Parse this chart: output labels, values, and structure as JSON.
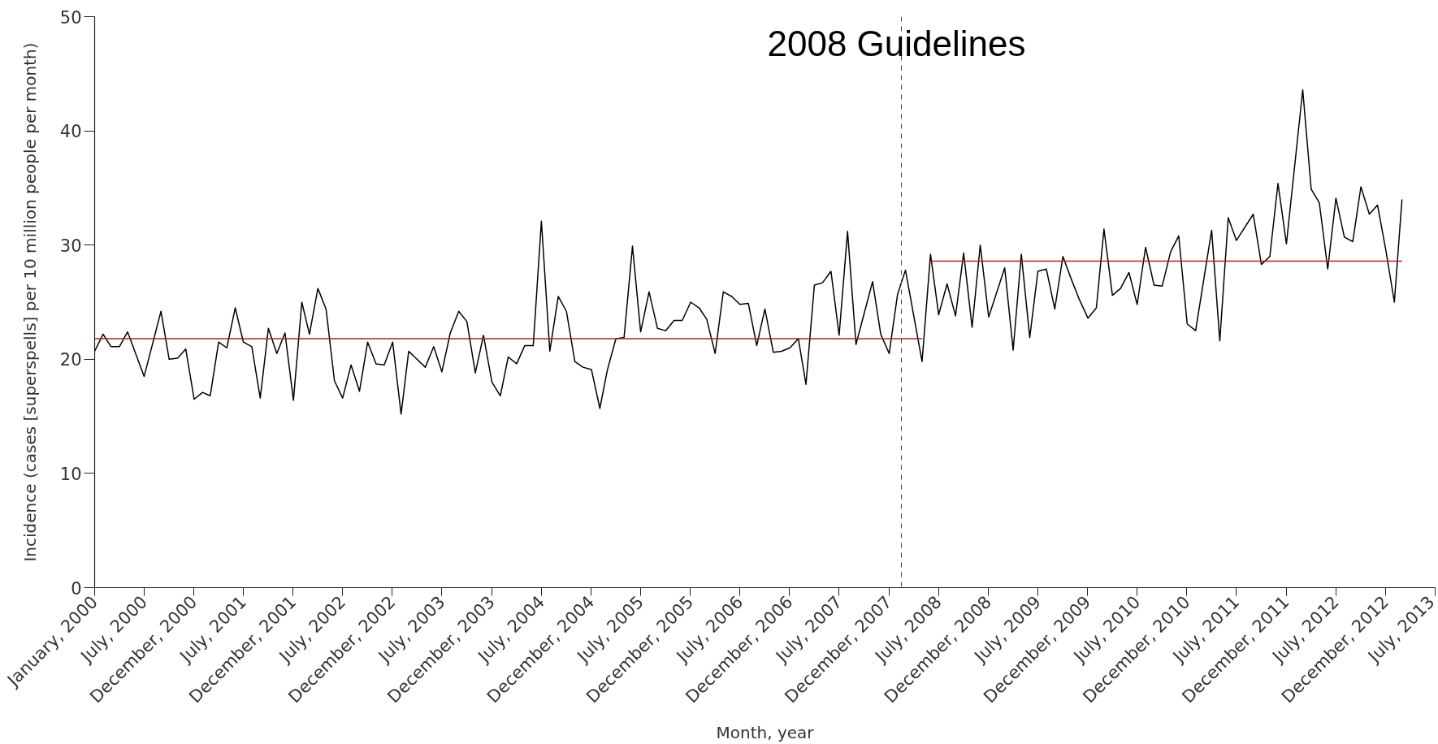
{
  "chart_data": {
    "type": "line",
    "xlabel": "Month, year",
    "ylabel": "Incidence (cases [superspells] per 10 million people per month)",
    "xlim": [
      "2000-01",
      "2013-07"
    ],
    "ylim": [
      0,
      50
    ],
    "yticks": [
      0,
      10,
      20,
      30,
      40,
      50
    ],
    "xticks": [
      {
        "value": "2000-01",
        "label": "January, 2000"
      },
      {
        "value": "2000-07",
        "label": "July, 2000"
      },
      {
        "value": "2000-12-31",
        "label": "December, 2000"
      },
      {
        "value": "2001-07",
        "label": "July, 2001"
      },
      {
        "value": "2001-12-31",
        "label": "December, 2001"
      },
      {
        "value": "2002-07",
        "label": "July, 2002"
      },
      {
        "value": "2002-12-31",
        "label": "December, 2002"
      },
      {
        "value": "2003-07",
        "label": "July, 2003"
      },
      {
        "value": "2003-12-31",
        "label": "December, 2003"
      },
      {
        "value": "2004-07",
        "label": "July, 2004"
      },
      {
        "value": "2004-12-31",
        "label": "December, 2004"
      },
      {
        "value": "2005-07",
        "label": "July, 2005"
      },
      {
        "value": "2005-12-31",
        "label": "December, 2005"
      },
      {
        "value": "2006-07",
        "label": "July, 2006"
      },
      {
        "value": "2006-12-31",
        "label": "December, 2006"
      },
      {
        "value": "2007-07",
        "label": "July, 2007"
      },
      {
        "value": "2007-12-31",
        "label": "December, 2007"
      },
      {
        "value": "2008-07",
        "label": "July, 2008"
      },
      {
        "value": "2008-12-31",
        "label": "December, 2008"
      },
      {
        "value": "2009-07",
        "label": "July, 2009"
      },
      {
        "value": "2009-12-31",
        "label": "December, 2009"
      },
      {
        "value": "2010-07",
        "label": "July, 2010"
      },
      {
        "value": "2010-12-31",
        "label": "December, 2010"
      },
      {
        "value": "2011-07",
        "label": "July, 2011"
      },
      {
        "value": "2011-12-31",
        "label": "December, 2011"
      },
      {
        "value": "2012-07",
        "label": "July, 2012"
      },
      {
        "value": "2012-12-31",
        "label": "December, 2012"
      },
      {
        "value": "2013-07",
        "label": "July, 2013"
      }
    ],
    "grid": false,
    "series": [
      {
        "color": "#000000",
        "x": [
          "2000-01",
          "2000-02",
          "2000-03",
          "2000-04",
          "2000-05",
          "2000-07",
          "2000-09",
          "2000-10",
          "2000-11",
          "2000-12",
          "2001-01",
          "2001-02",
          "2001-03",
          "2001-04",
          "2001-05",
          "2001-06",
          "2001-07",
          "2001-08",
          "2001-09",
          "2001-10",
          "2001-11",
          "2001-12",
          "2002-01",
          "2002-02",
          "2002-03",
          "2002-04",
          "2002-05",
          "2002-06",
          "2002-07",
          "2002-08",
          "2002-09",
          "2002-10",
          "2002-11",
          "2002-12",
          "2003-01",
          "2003-02",
          "2003-03",
          "2003-05",
          "2003-06",
          "2003-07",
          "2003-08",
          "2003-09",
          "2003-10",
          "2003-11",
          "2003-12",
          "2004-01",
          "2004-02",
          "2004-03",
          "2004-04",
          "2004-05",
          "2004-06",
          "2004-07",
          "2004-08",
          "2004-09",
          "2004-10",
          "2004-11",
          "2004-12",
          "2005-01",
          "2005-02",
          "2005-03",
          "2005-04",
          "2005-05",
          "2005-06",
          "2005-07",
          "2005-08",
          "2005-09",
          "2005-10",
          "2005-11",
          "2005-12",
          "2006-01",
          "2006-02",
          "2006-03",
          "2006-04",
          "2006-05",
          "2006-06",
          "2006-07",
          "2006-08",
          "2006-09",
          "2006-10",
          "2006-11",
          "2006-12",
          "2007-01",
          "2007-02",
          "2007-03",
          "2007-04",
          "2007-05",
          "2007-06",
          "2007-07",
          "2007-08",
          "2007-09",
          "2007-11",
          "2007-12",
          "2008-01",
          "2008-02",
          "2008-03",
          "2008-05",
          "2008-06",
          "2008-07",
          "2008-08",
          "2008-09",
          "2008-10",
          "2008-11",
          "2008-12",
          "2009-01",
          "2009-03",
          "2009-04",
          "2009-05",
          "2009-06",
          "2009-07",
          "2009-08",
          "2009-09",
          "2009-10",
          "2009-11",
          "2009-12",
          "2010-01",
          "2010-02",
          "2010-03",
          "2010-04",
          "2010-05",
          "2010-06",
          "2010-07",
          "2010-08",
          "2010-09",
          "2010-10",
          "2010-11",
          "2010-12",
          "2011-01",
          "2011-02",
          "2011-04",
          "2011-05",
          "2011-06",
          "2011-07",
          "2011-09",
          "2011-10",
          "2011-11",
          "2011-12",
          "2012-01",
          "2012-03",
          "2012-04",
          "2012-05",
          "2012-06",
          "2012-07",
          "2012-08",
          "2012-09",
          "2012-10",
          "2012-11",
          "2012-12",
          "2013-01",
          "2013-02",
          "2013-03"
        ],
        "values": [
          20.7,
          22.2,
          21.1,
          21.1,
          22.4,
          18.5,
          24.2,
          20.0,
          20.1,
          20.9,
          16.5,
          17.1,
          16.8,
          21.5,
          21.0,
          24.5,
          21.5,
          21.1,
          16.6,
          22.7,
          20.5,
          22.3,
          16.4,
          25.0,
          22.2,
          26.2,
          24.4,
          18.1,
          16.6,
          19.5,
          17.2,
          21.5,
          19.6,
          19.5,
          21.5,
          15.2,
          20.7,
          19.3,
          21.1,
          18.9,
          22.3,
          24.2,
          23.3,
          18.8,
          22.1,
          18.0,
          16.8,
          20.2,
          19.6,
          21.2,
          21.2,
          32.1,
          20.7,
          25.5,
          24.2,
          19.8,
          19.3,
          19.1,
          15.7,
          19.1,
          21.8,
          21.9,
          29.9,
          22.4,
          25.9,
          22.7,
          22.5,
          23.4,
          23.4,
          25.0,
          24.5,
          23.5,
          20.5,
          25.9,
          25.5,
          24.8,
          24.9,
          21.2,
          24.4,
          20.6,
          20.7,
          21.0,
          21.8,
          17.8,
          26.5,
          26.7,
          27.7,
          22.1,
          31.2,
          21.3,
          26.8,
          22.2,
          20.5,
          25.7,
          27.8,
          19.8,
          29.2,
          23.9,
          26.6,
          23.8,
          29.3,
          22.8,
          30.0,
          23.7,
          28.0,
          20.8,
          29.2,
          21.9,
          27.7,
          27.9,
          24.4,
          29.0,
          27.0,
          25.2,
          23.6,
          24.5,
          31.4,
          25.6,
          26.2,
          27.6,
          24.8,
          29.8,
          26.5,
          26.4,
          29.4,
          30.8,
          23.1,
          22.5,
          31.3,
          21.6,
          32.4,
          30.4,
          32.7,
          28.3,
          29.0,
          35.4,
          30.1,
          43.6,
          34.9,
          33.7,
          27.9,
          34.1,
          30.7,
          30.3,
          35.1,
          32.7,
          33.5,
          29.5,
          25.0,
          34.0
        ]
      },
      {
        "type": "line",
        "color": "#b22222",
        "x": [
          "2000-01",
          "2008-05"
        ],
        "values": [
          21.8,
          21.8
        ]
      },
      {
        "type": "line",
        "color": "#b22222",
        "x": [
          "2008-06",
          "2013-03"
        ],
        "values": [
          28.6,
          28.6
        ]
      }
    ],
    "ref_lines": [
      {
        "axis": "x",
        "value": "2008-02-15",
        "label": "2008 Guidelines",
        "color": "#444444",
        "line_style": "dashed"
      }
    ]
  }
}
